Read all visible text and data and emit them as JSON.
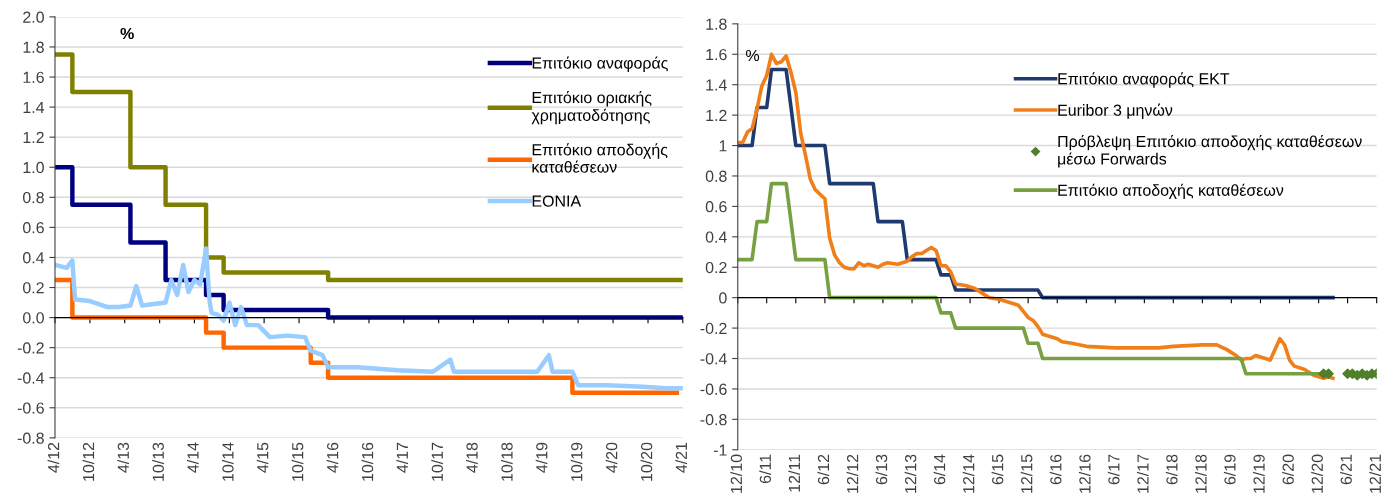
{
  "chart_data": [
    {
      "type": "step",
      "annotations": [
        "%"
      ],
      "xlim": [
        "2012-04",
        "2021-04"
      ],
      "ylim": [
        -0.8,
        2.0
      ],
      "xticks": [
        {
          "value": "2012-04",
          "label": "4/12"
        },
        {
          "value": "2012-10",
          "label": "10/12"
        },
        {
          "value": "2013-04",
          "label": "4/13"
        },
        {
          "value": "2013-10",
          "label": "10/13"
        },
        {
          "value": "2014-04",
          "label": "4/14"
        },
        {
          "value": "2014-10",
          "label": "10/14"
        },
        {
          "value": "2015-04",
          "label": "4/15"
        },
        {
          "value": "2015-10",
          "label": "10/15"
        },
        {
          "value": "2016-04",
          "label": "4/16"
        },
        {
          "value": "2016-10",
          "label": "10/16"
        },
        {
          "value": "2017-04",
          "label": "4/17"
        },
        {
          "value": "2017-10",
          "label": "10/17"
        },
        {
          "value": "2018-04",
          "label": "4/18"
        },
        {
          "value": "2018-10",
          "label": "10/18"
        },
        {
          "value": "2019-04",
          "label": "4/19"
        },
        {
          "value": "2019-10",
          "label": "10/19"
        },
        {
          "value": "2020-04",
          "label": "4/20"
        },
        {
          "value": "2020-10",
          "label": "10/20"
        },
        {
          "value": "2021-04",
          "label": "4/21"
        }
      ],
      "yticks": [
        {
          "value": 2.0,
          "label": "2.0"
        },
        {
          "value": 1.8,
          "label": "1.8"
        },
        {
          "value": 1.6,
          "label": "1.6"
        },
        {
          "value": 1.4,
          "label": "1.4"
        },
        {
          "value": 1.2,
          "label": "1.2"
        },
        {
          "value": 1.0,
          "label": "1.0"
        },
        {
          "value": 0.8,
          "label": "0.8"
        },
        {
          "value": 0.6,
          "label": "0.6"
        },
        {
          "value": 0.4,
          "label": "0.4"
        },
        {
          "value": 0.2,
          "label": "0.2"
        },
        {
          "value": 0.0,
          "label": "0.0"
        },
        {
          "value": -0.2,
          "label": "-0.2"
        },
        {
          "value": -0.4,
          "label": "-0.4"
        },
        {
          "value": -0.6,
          "label": "-0.6"
        },
        {
          "value": -0.8,
          "label": "-0.8"
        }
      ],
      "grid": "y",
      "legend": "top right",
      "line_style": "solid",
      "series": [
        {
          "name": "Επιτόκιο αναφοράς",
          "color": "#000080",
          "x": [
            "2012-04",
            "2012-07",
            "2013-05",
            "2013-11",
            "2014-06",
            "2014-09",
            "2016-03",
            "2021-04"
          ],
          "values": [
            1.0,
            0.75,
            0.5,
            0.25,
            0.15,
            0.05,
            0,
            0
          ]
        },
        {
          "name": "Επιτόκιο οριακής\nχρηματοδότησης",
          "color": "#808000",
          "x": [
            "2012-04",
            "2012-07",
            "2013-05",
            "2013-11",
            "2014-06",
            "2014-09",
            "2016-03",
            "2021-04"
          ],
          "values": [
            1.75,
            1.5,
            1.0,
            0.75,
            0.4,
            0.3,
            0.25,
            0.25
          ]
        },
        {
          "name": "Επιτόκιο αποδοχής\nκαταθέσεων",
          "color": "#ff6600",
          "x": [
            "2012-04",
            "2012-07",
            "2014-06",
            "2014-09",
            "2015-12",
            "2016-03",
            "2019-09",
            "2021-03"
          ],
          "values": [
            0.25,
            0,
            -0.1,
            -0.2,
            -0.3,
            -0.4,
            -0.5,
            -0.5
          ]
        },
        {
          "name": "EONIA",
          "type": "line",
          "color": "#99ccff",
          "x": [
            "2012-04",
            "2012-06",
            "2012-07",
            "2012-07-15",
            "2012-10",
            "2013-01",
            "2013-03",
            "2013-05",
            "2013-06",
            "2013-07",
            "2013-09",
            "2013-11",
            "2013-12",
            "2014-01",
            "2014-02",
            "2014-03",
            "2014-04",
            "2014-05",
            "2014-06",
            "2014-06-20",
            "2014-07",
            "2014-08",
            "2014-09",
            "2014-10",
            "2014-11",
            "2014-12",
            "2015-01",
            "2015-03",
            "2015-05",
            "2015-08",
            "2015-11",
            "2015-12",
            "2016-02",
            "2016-03",
            "2016-08",
            "2017-03",
            "2017-09",
            "2017-12",
            "2017-12-20",
            "2018-06",
            "2019-03",
            "2019-05",
            "2019-05-20",
            "2019-09",
            "2019-10",
            "2020-03",
            "2020-09",
            "2021-01",
            "2021-04"
          ],
          "values": [
            0.35,
            0.33,
            0.38,
            0.12,
            0.11,
            0.07,
            0.07,
            0.08,
            0.21,
            0.08,
            0.09,
            0.1,
            0.25,
            0.15,
            0.35,
            0.17,
            0.25,
            0.22,
            0.46,
            0.1,
            0.03,
            0.02,
            -0.02,
            0.1,
            -0.05,
            0.07,
            -0.05,
            -0.05,
            -0.13,
            -0.12,
            -0.13,
            -0.22,
            -0.25,
            -0.33,
            -0.33,
            -0.35,
            -0.36,
            -0.28,
            -0.36,
            -0.36,
            -0.36,
            -0.25,
            -0.36,
            -0.36,
            -0.45,
            -0.45,
            -0.46,
            -0.47,
            -0.47
          ]
        }
      ]
    },
    {
      "type": "line",
      "annotations": [
        "%"
      ],
      "xlim": [
        "2010-12",
        "2021-12"
      ],
      "ylim": [
        -1,
        1.8
      ],
      "xticks": [
        {
          "value": "2010-12",
          "label": "12/10"
        },
        {
          "value": "2011-06",
          "label": "6/11"
        },
        {
          "value": "2011-12",
          "label": "12/11"
        },
        {
          "value": "2012-06",
          "label": "6/12"
        },
        {
          "value": "2012-12",
          "label": "12/12"
        },
        {
          "value": "2013-06",
          "label": "6/13"
        },
        {
          "value": "2013-12",
          "label": "12/13"
        },
        {
          "value": "2014-06",
          "label": "6/14"
        },
        {
          "value": "2014-12",
          "label": "12/14"
        },
        {
          "value": "2015-06",
          "label": "6/15"
        },
        {
          "value": "2015-12",
          "label": "12/15"
        },
        {
          "value": "2016-06",
          "label": "6/16"
        },
        {
          "value": "2016-12",
          "label": "12/16"
        },
        {
          "value": "2017-06",
          "label": "6/17"
        },
        {
          "value": "2017-12",
          "label": "12/17"
        },
        {
          "value": "2018-06",
          "label": "6/18"
        },
        {
          "value": "2018-12",
          "label": "12/18"
        },
        {
          "value": "2019-06",
          "label": "6/19"
        },
        {
          "value": "2019-12",
          "label": "12/19"
        },
        {
          "value": "2020-06",
          "label": "6/20"
        },
        {
          "value": "2020-12",
          "label": "12/20"
        },
        {
          "value": "2021-06",
          "label": "6/21"
        },
        {
          "value": "2021-12",
          "label": "12/21"
        }
      ],
      "yticks": [
        1.8,
        1.6,
        1.4,
        1.2,
        1,
        0.8,
        0.6,
        0.4,
        0.2,
        0,
        -0.2,
        -0.4,
        -0.6,
        -0.8,
        -1
      ],
      "grid": "y",
      "legend": "top right",
      "line_style": "solid",
      "series": [
        {
          "name": "Επιτόκιο αναφοράς ΕΚΤ",
          "color": "#1f3a6e",
          "x": [
            "2010-12",
            "2011-03",
            "2011-04",
            "2011-06",
            "2011-07",
            "2011-10",
            "2011-11",
            "2011-12",
            "2012-06",
            "2012-07",
            "2013-04",
            "2013-05",
            "2013-10",
            "2013-11",
            "2014-05",
            "2014-06",
            "2014-08",
            "2014-09",
            "2016-02",
            "2016-03",
            "2021-03"
          ],
          "values": [
            1.0,
            1.0,
            1.25,
            1.25,
            1.5,
            1.5,
            1.25,
            1.0,
            1.0,
            0.75,
            0.75,
            0.5,
            0.5,
            0.25,
            0.25,
            0.15,
            0.15,
            0.05,
            0.05,
            0,
            0
          ]
        },
        {
          "name": "Euribor 3 μηνών",
          "color": "#f07f1a",
          "x": [
            "2010-12",
            "2011-01",
            "2011-02",
            "2011-03",
            "2011-04",
            "2011-05",
            "2011-06",
            "2011-07",
            "2011-08",
            "2011-09",
            "2011-10",
            "2011-11",
            "2011-12",
            "2012-01",
            "2012-02",
            "2012-03",
            "2012-04",
            "2012-05",
            "2012-06",
            "2012-07",
            "2012-08",
            "2012-09",
            "2012-10",
            "2012-11",
            "2012-12",
            "2013-01",
            "2013-02",
            "2013-03",
            "2013-05",
            "2013-06",
            "2013-07",
            "2013-09",
            "2013-11",
            "2013-12",
            "2014-01",
            "2014-02",
            "2014-03",
            "2014-04",
            "2014-05",
            "2014-06",
            "2014-07",
            "2014-08",
            "2014-09",
            "2014-11",
            "2015-01",
            "2015-03",
            "2015-04",
            "2015-06",
            "2015-08",
            "2015-09",
            "2015-10",
            "2015-11",
            "2015-12",
            "2016-01",
            "2016-02",
            "2016-03",
            "2016-04",
            "2016-06",
            "2016-07",
            "2016-09",
            "2016-12",
            "2017-06",
            "2017-12",
            "2018-03",
            "2018-06",
            "2018-12",
            "2019-03",
            "2019-05",
            "2019-07",
            "2019-08",
            "2019-09",
            "2019-10",
            "2019-11",
            "2019-12",
            "2020-02",
            "2020-04",
            "2020-05",
            "2020-06",
            "2020-07",
            "2020-09",
            "2020-11",
            "2021-01",
            "2021-02",
            "2021-03"
          ],
          "values": [
            1.02,
            1.02,
            1.09,
            1.11,
            1.24,
            1.39,
            1.46,
            1.6,
            1.54,
            1.55,
            1.59,
            1.48,
            1.35,
            1.08,
            0.93,
            0.78,
            0.71,
            0.68,
            0.65,
            0.39,
            0.28,
            0.23,
            0.2,
            0.19,
            0.19,
            0.23,
            0.21,
            0.22,
            0.2,
            0.22,
            0.23,
            0.22,
            0.24,
            0.27,
            0.29,
            0.29,
            0.31,
            0.33,
            0.31,
            0.21,
            0.21,
            0.17,
            0.09,
            0.08,
            0.06,
            0.02,
            0.0,
            -0.01,
            -0.03,
            -0.04,
            -0.05,
            -0.09,
            -0.13,
            -0.15,
            -0.19,
            -0.24,
            -0.25,
            -0.27,
            -0.29,
            -0.3,
            -0.32,
            -0.33,
            -0.33,
            -0.33,
            -0.32,
            -0.31,
            -0.31,
            -0.34,
            -0.38,
            -0.41,
            -0.4,
            -0.4,
            -0.38,
            -0.39,
            -0.41,
            -0.27,
            -0.31,
            -0.41,
            -0.45,
            -0.47,
            -0.51,
            -0.53,
            -0.52,
            -0.53
          ]
        },
        {
          "name": "Πρόβλεψη Επιτόκιο αποδοχής καταθέσεων\nμέσω Forwards",
          "type": "scatter",
          "marker": "diamond",
          "color": "#4f7f2a",
          "x": [
            "2021-01",
            "2021-02",
            "2021-06",
            "2021-07",
            "2021-08",
            "2021-09",
            "2021-10",
            "2021-11",
            "2021-12"
          ],
          "values": [
            -0.5,
            -0.5,
            -0.5,
            -0.5,
            -0.51,
            -0.5,
            -0.51,
            -0.5,
            -0.5
          ]
        },
        {
          "name": "Επιτόκιο αποδοχής καταθέσεων",
          "color": "#77a043",
          "x": [
            "2010-12",
            "2011-03",
            "2011-04",
            "2011-06",
            "2011-07",
            "2011-10",
            "2011-11",
            "2011-12",
            "2012-06",
            "2012-07",
            "2014-05",
            "2014-06",
            "2014-08",
            "2014-09",
            "2015-11",
            "2015-12",
            "2016-02",
            "2016-03",
            "2019-08",
            "2019-09",
            "2021-01"
          ],
          "values": [
            0.25,
            0.25,
            0.5,
            0.5,
            0.75,
            0.75,
            0.5,
            0.25,
            0.25,
            0,
            0,
            -0.1,
            -0.1,
            -0.2,
            -0.2,
            -0.3,
            -0.3,
            -0.4,
            -0.4,
            -0.5,
            -0.5
          ]
        }
      ]
    }
  ]
}
